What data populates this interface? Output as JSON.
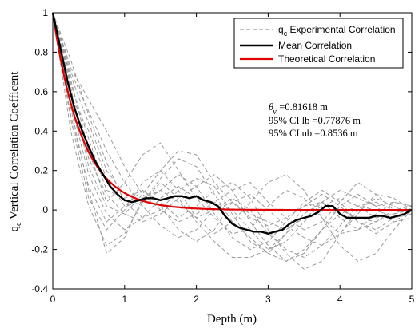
{
  "chart_data": {
    "type": "line",
    "xlabel": "Depth (m)",
    "ylabel": "q c Vertical Correlation Coefficent",
    "ylabel_main": "q",
    "ylabel_sub": "c",
    "ylabel_rest": " Vertical Correlation Coefficent",
    "xlim": [
      0,
      5
    ],
    "ylim": [
      -0.4,
      1
    ],
    "xticks": [
      0,
      1,
      2,
      3,
      4,
      5
    ],
    "xtick_labels": [
      "0",
      "1",
      "2",
      "3",
      "4",
      "5"
    ],
    "yticks": [
      -0.4,
      -0.2,
      0,
      0.2,
      0.4,
      0.6,
      0.8,
      1
    ],
    "ytick_labels": [
      "-0.4",
      "-0.2",
      "0",
      "0.2",
      "0.4",
      "0.6",
      "0.8",
      "1"
    ],
    "grid": false,
    "legend_position": "top-right",
    "legend": [
      {
        "main": "q",
        "sub": "c",
        "rest": " Experimental Correlation",
        "color": "#9a9a9a",
        "style": "dashed"
      },
      {
        "main": "Mean Correlation",
        "sub": "",
        "rest": "",
        "color": "#000000",
        "style": "solid"
      },
      {
        "main": "Theoretical Correlation",
        "sub": "",
        "rest": "",
        "color": "#e00000",
        "style": "solid"
      }
    ],
    "annotations": [
      {
        "main": "θ",
        "sub": "v",
        "rest": " =0.81618 m"
      },
      {
        "main": "95% CI lb =0.77876 m",
        "sub": "",
        "rest": ""
      },
      {
        "main": "95% CI ub =0.8536 m",
        "sub": "",
        "rest": ""
      }
    ],
    "theoretical": {
      "name": "Theoretical Correlation",
      "color": "#e00000",
      "theta_v": 0.81618
    },
    "mean": {
      "name": "Mean Correlation",
      "color": "#000000",
      "x": [
        0,
        0.1,
        0.2,
        0.3,
        0.4,
        0.5,
        0.6,
        0.7,
        0.8,
        0.9,
        1.0,
        1.1,
        1.2,
        1.3,
        1.4,
        1.5,
        1.6,
        1.7,
        1.8,
        1.9,
        2.0,
        2.1,
        2.2,
        2.3,
        2.4,
        2.5,
        2.6,
        2.7,
        2.8,
        2.9,
        3.0,
        3.1,
        3.2,
        3.3,
        3.4,
        3.5,
        3.6,
        3.7,
        3.8,
        3.9,
        4.0,
        4.1,
        4.2,
        4.3,
        4.4,
        4.5,
        4.6,
        4.7,
        4.8,
        4.9,
        5.0
      ],
      "y": [
        1.0,
        0.83,
        0.66,
        0.52,
        0.41,
        0.32,
        0.24,
        0.18,
        0.12,
        0.08,
        0.05,
        0.04,
        0.05,
        0.06,
        0.06,
        0.05,
        0.06,
        0.07,
        0.07,
        0.06,
        0.07,
        0.05,
        0.04,
        0.02,
        -0.03,
        -0.07,
        -0.09,
        -0.1,
        -0.11,
        -0.11,
        -0.12,
        -0.11,
        -0.1,
        -0.07,
        -0.05,
        -0.04,
        -0.03,
        -0.01,
        0.02,
        0.02,
        -0.02,
        -0.04,
        -0.04,
        -0.04,
        -0.04,
        -0.03,
        -0.03,
        -0.04,
        -0.03,
        -0.02,
        0.0
      ]
    },
    "experimental": {
      "name": "q c Experimental Correlation",
      "color": "#9a9a9a",
      "x": [
        0,
        0.25,
        0.5,
        0.75,
        1.0,
        1.25,
        1.5,
        1.75,
        2.0,
        2.25,
        2.5,
        2.75,
        3.0,
        3.25,
        3.5,
        3.75,
        4.0,
        4.25,
        4.5,
        4.75,
        5.0
      ],
      "series": [
        [
          1.0,
          0.62,
          0.22,
          0.02,
          -0.02,
          0.08,
          0.2,
          0.3,
          0.28,
          0.14,
          0.04,
          -0.04,
          -0.08,
          -0.04,
          0.02,
          0.04,
          -0.04,
          -0.1,
          -0.06,
          0.0,
          0.02
        ],
        [
          1.0,
          0.7,
          0.5,
          0.3,
          0.14,
          0.02,
          -0.08,
          -0.14,
          -0.1,
          0.0,
          0.04,
          -0.02,
          -0.06,
          -0.1,
          -0.04,
          0.02,
          0.06,
          0.02,
          -0.04,
          -0.02,
          0.0
        ],
        [
          1.0,
          0.4,
          0.02,
          -0.18,
          -0.12,
          0.04,
          0.14,
          0.06,
          -0.06,
          -0.16,
          -0.24,
          -0.24,
          -0.2,
          -0.12,
          -0.02,
          0.04,
          0.0,
          -0.04,
          -0.06,
          -0.02,
          0.02
        ],
        [
          1.0,
          0.52,
          0.1,
          -0.22,
          -0.14,
          0.06,
          0.1,
          0.04,
          -0.04,
          0.0,
          0.06,
          0.0,
          -0.12,
          -0.2,
          -0.24,
          -0.18,
          -0.08,
          0.02,
          0.04,
          0.0,
          -0.02
        ],
        [
          1.0,
          0.76,
          0.48,
          0.24,
          0.04,
          -0.04,
          0.0,
          0.1,
          0.16,
          0.12,
          -0.02,
          -0.16,
          -0.22,
          -0.12,
          0.02,
          0.08,
          0.02,
          -0.06,
          -0.1,
          -0.04,
          0.0
        ],
        [
          1.0,
          0.58,
          0.4,
          0.16,
          0.02,
          0.04,
          0.16,
          0.26,
          0.22,
          0.08,
          -0.06,
          -0.14,
          -0.22,
          -0.26,
          -0.2,
          -0.1,
          -0.02,
          0.02,
          0.0,
          -0.04,
          -0.02
        ],
        [
          1.0,
          0.66,
          0.3,
          0.04,
          0.14,
          0.28,
          0.34,
          0.2,
          0.06,
          0.04,
          0.1,
          0.14,
          0.04,
          -0.04,
          -0.1,
          -0.06,
          0.04,
          0.14,
          0.08,
          0.0,
          0.0
        ],
        [
          1.0,
          0.46,
          0.06,
          -0.1,
          0.0,
          0.14,
          0.2,
          0.1,
          -0.04,
          -0.12,
          -0.06,
          0.04,
          0.14,
          0.18,
          0.1,
          -0.04,
          -0.18,
          -0.26,
          -0.22,
          -0.1,
          0.0
        ],
        [
          1.0,
          0.72,
          0.56,
          0.4,
          0.22,
          0.08,
          0.0,
          -0.06,
          -0.02,
          0.04,
          0.0,
          -0.1,
          -0.2,
          -0.16,
          -0.06,
          0.04,
          0.1,
          0.06,
          0.02,
          0.04,
          0.02
        ],
        [
          1.0,
          0.54,
          0.18,
          -0.02,
          -0.1,
          -0.04,
          0.06,
          0.12,
          0.06,
          -0.04,
          -0.12,
          -0.1,
          0.02,
          0.1,
          0.06,
          -0.04,
          -0.12,
          -0.1,
          -0.02,
          0.04,
          0.02
        ],
        [
          1.0,
          0.64,
          0.36,
          0.1,
          0.06,
          0.1,
          0.02,
          -0.1,
          -0.16,
          -0.1,
          0.04,
          0.08,
          0.0,
          -0.08,
          -0.14,
          -0.18,
          -0.12,
          -0.02,
          0.08,
          0.06,
          0.0
        ],
        [
          1.0,
          0.48,
          0.12,
          -0.06,
          0.02,
          0.1,
          0.04,
          -0.04,
          0.02,
          0.1,
          0.14,
          0.06,
          -0.1,
          -0.22,
          -0.3,
          -0.26,
          -0.12,
          0.0,
          0.06,
          0.02,
          -0.02
        ],
        [
          1.0,
          0.6,
          0.26,
          0.08,
          -0.02,
          -0.06,
          -0.02,
          0.06,
          0.12,
          0.18,
          0.1,
          -0.06,
          -0.18,
          -0.26,
          -0.22,
          -0.1,
          0.02,
          0.08,
          0.02,
          -0.06,
          -0.04
        ],
        [
          1.0,
          0.68,
          0.44,
          0.2,
          0.08,
          0.04,
          0.1,
          0.18,
          0.12,
          -0.02,
          -0.14,
          -0.2,
          -0.16,
          -0.06,
          0.04,
          0.1,
          0.04,
          -0.06,
          -0.12,
          -0.06,
          0.0
        ]
      ]
    }
  }
}
